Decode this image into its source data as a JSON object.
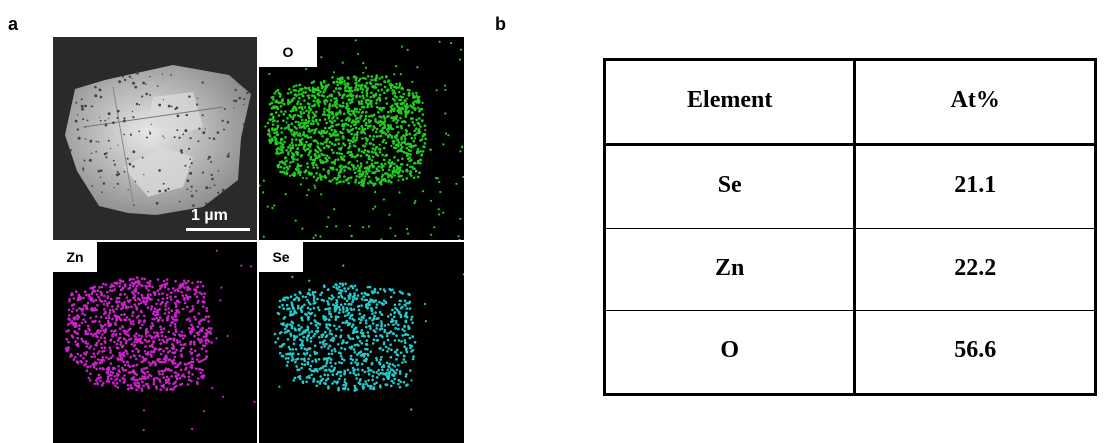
{
  "panels": {
    "a": "a",
    "b": "b"
  },
  "maps": {
    "scale_bar_label": "1 µm",
    "o_label": "O",
    "zn_label": "Zn",
    "se_label": "Se",
    "o_color": "#22cc22",
    "zn_color": "#cc22cc",
    "se_color": "#22cccc"
  },
  "table": {
    "headers": [
      "Element",
      "At%"
    ],
    "rows": [
      {
        "element": "Se",
        "at_percent": "21.1"
      },
      {
        "element": "Zn",
        "at_percent": "22.2"
      },
      {
        "element": "O",
        "at_percent": "56.6"
      }
    ]
  }
}
